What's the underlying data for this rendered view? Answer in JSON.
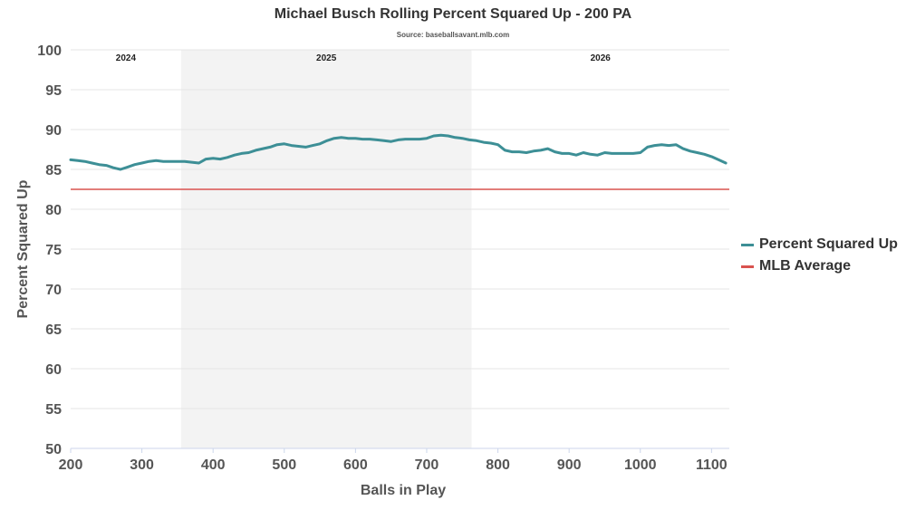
{
  "colors": {
    "series": "#3d8f96",
    "average": "#d9534f",
    "band": "#f3f3f3",
    "grid": "#e6e6e6",
    "axis": "#ccd6eb"
  },
  "chart_data": {
    "type": "line",
    "title": "Michael Busch Rolling Percent Squared Up - 200 PA",
    "subtitle": "Source: baseballsavant.mlb.com",
    "xlabel": "Balls in Play",
    "ylabel": "Percent Squared Up",
    "xlim": [
      200,
      1125
    ],
    "ylim": [
      50,
      100
    ],
    "xticks": [
      200,
      300,
      400,
      500,
      600,
      700,
      800,
      900,
      1000,
      1100
    ],
    "yticks": [
      50,
      55,
      60,
      65,
      70,
      75,
      80,
      85,
      90,
      95,
      100
    ],
    "grid": true,
    "legend": "right",
    "season_bands": [
      {
        "label": "2024",
        "start": 200,
        "end": 355,
        "shaded": false
      },
      {
        "label": "2025",
        "start": 355,
        "end": 763,
        "shaded": true
      },
      {
        "label": "2026",
        "start": 763,
        "end": 1125,
        "shaded": false
      }
    ],
    "series": [
      {
        "name": "Percent Squared Up",
        "x": [
          200,
          210,
          220,
          230,
          240,
          250,
          260,
          270,
          280,
          290,
          300,
          310,
          320,
          330,
          340,
          350,
          360,
          370,
          380,
          390,
          400,
          410,
          420,
          430,
          440,
          450,
          460,
          470,
          480,
          490,
          500,
          510,
          520,
          530,
          540,
          550,
          560,
          570,
          580,
          590,
          600,
          610,
          620,
          630,
          640,
          650,
          660,
          670,
          680,
          690,
          700,
          710,
          720,
          730,
          740,
          750,
          760,
          770,
          780,
          790,
          800,
          810,
          820,
          830,
          840,
          850,
          860,
          870,
          880,
          890,
          900,
          910,
          920,
          930,
          940,
          950,
          960,
          970,
          980,
          990,
          1000,
          1010,
          1020,
          1030,
          1040,
          1050,
          1060,
          1070,
          1080,
          1090,
          1100,
          1110,
          1120
        ],
        "y": [
          86.2,
          86.1,
          86.0,
          85.8,
          85.6,
          85.5,
          85.2,
          85.0,
          85.3,
          85.6,
          85.8,
          86.0,
          86.1,
          86.0,
          86.0,
          86.0,
          86.0,
          85.9,
          85.8,
          86.3,
          86.4,
          86.3,
          86.5,
          86.8,
          87.0,
          87.1,
          87.4,
          87.6,
          87.8,
          88.1,
          88.2,
          88.0,
          87.9,
          87.8,
          88.0,
          88.2,
          88.6,
          88.9,
          89.0,
          88.9,
          88.9,
          88.8,
          88.8,
          88.7,
          88.6,
          88.5,
          88.7,
          88.8,
          88.8,
          88.8,
          88.9,
          89.2,
          89.3,
          89.2,
          89.0,
          88.9,
          88.7,
          88.6,
          88.4,
          88.3,
          88.1,
          87.4,
          87.2,
          87.2,
          87.1,
          87.3,
          87.4,
          87.6,
          87.2,
          87.0,
          87.0,
          86.8,
          87.1,
          86.9,
          86.8,
          87.1,
          87.0,
          87.0,
          87.0,
          87.0,
          87.1,
          87.8,
          88.0,
          88.1,
          88.0,
          88.1,
          87.6,
          87.3,
          87.1,
          86.9,
          86.6,
          86.2,
          85.8
        ]
      },
      {
        "name": "MLB Average",
        "y": 82.5
      }
    ]
  }
}
